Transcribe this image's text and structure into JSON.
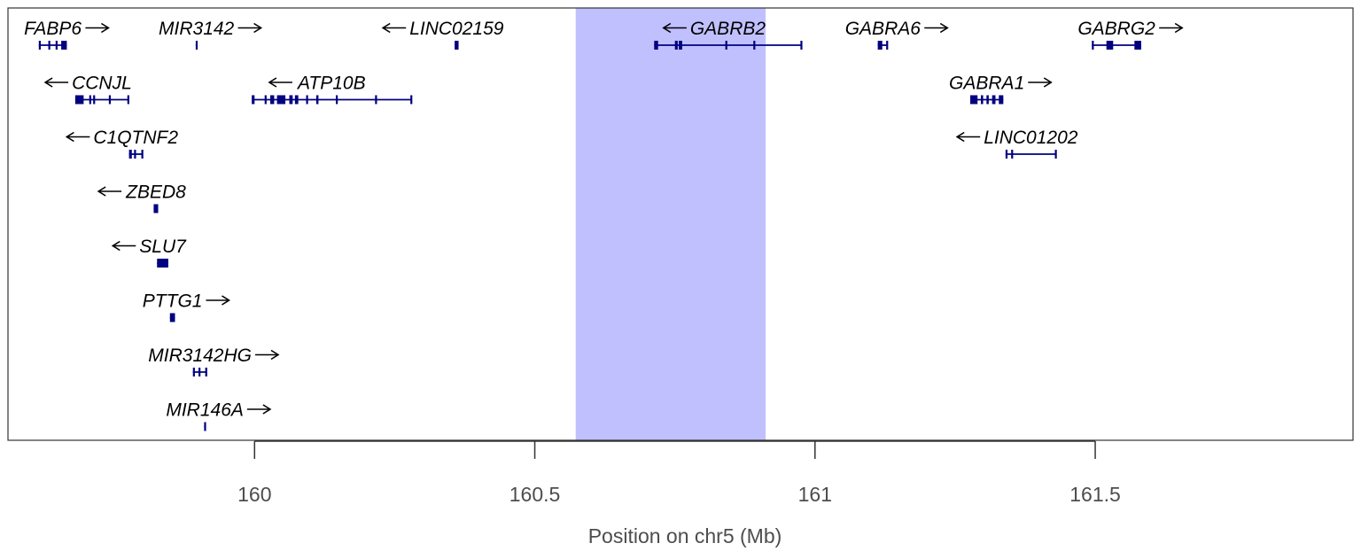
{
  "chart_data": {
    "type": "gene-track",
    "xlabel": "Position on chr5 (Mb)",
    "xlim": [
      159.56,
      161.96
    ],
    "xticks": [
      {
        "value": 160,
        "label": "160"
      },
      {
        "value": 160.5,
        "label": "160.5"
      },
      {
        "value": 161,
        "label": "161"
      },
      {
        "value": 161.5,
        "label": "161.5"
      }
    ],
    "highlight": {
      "start": 160.573,
      "end": 160.912,
      "color": "#c0c0ff"
    },
    "gene_color": "#000080",
    "genes": [
      {
        "name": "FABP6",
        "strand": "+",
        "row": 0,
        "start": 159.615,
        "end": 159.665,
        "exons": [
          [
            159.615,
            159.618
          ],
          [
            159.632,
            159.635
          ],
          [
            159.645,
            159.648
          ],
          [
            159.655,
            159.665
          ]
        ]
      },
      {
        "name": "MIR3142",
        "strand": "+",
        "row": 0,
        "start": 159.895,
        "end": 159.897,
        "exons": [
          [
            159.895,
            159.897
          ]
        ]
      },
      {
        "name": "LINC02159",
        "strand": "-",
        "row": 0,
        "start": 160.357,
        "end": 160.364,
        "exons": [
          [
            160.357,
            160.364
          ]
        ]
      },
      {
        "name": "GABRB2",
        "strand": "-",
        "row": 0,
        "start": 160.713,
        "end": 160.976,
        "exons": [
          [
            160.713,
            160.72
          ],
          [
            160.75,
            160.755
          ],
          [
            160.757,
            160.763
          ],
          [
            160.84,
            160.842
          ],
          [
            160.89,
            160.892
          ],
          [
            160.974,
            160.976
          ]
        ]
      },
      {
        "name": "GABRA6",
        "strand": "+",
        "row": 0,
        "start": 161.112,
        "end": 161.13,
        "exons": [
          [
            161.112,
            161.12
          ],
          [
            161.127,
            161.13
          ]
        ]
      },
      {
        "name": "GABRG2",
        "strand": "+",
        "row": 0,
        "start": 161.494,
        "end": 161.582,
        "exons": [
          [
            161.494,
            161.496
          ],
          [
            161.52,
            161.532
          ],
          [
            161.57,
            161.582
          ]
        ]
      },
      {
        "name": "CCNJL",
        "strand": "-",
        "row": 1,
        "start": 159.68,
        "end": 159.775,
        "exons": [
          [
            159.68,
            159.695
          ],
          [
            159.705,
            159.708
          ],
          [
            159.712,
            159.715
          ],
          [
            159.74,
            159.743
          ],
          [
            159.773,
            159.775
          ]
        ]
      },
      {
        "name": "ATP10B",
        "strand": "-",
        "row": 1,
        "start": 159.995,
        "end": 160.28,
        "exons": [
          [
            159.995,
            160.0
          ],
          [
            160.018,
            160.021
          ],
          [
            160.028,
            160.035
          ],
          [
            160.04,
            160.055
          ],
          [
            160.062,
            160.068
          ],
          [
            160.072,
            160.078
          ],
          [
            160.092,
            160.094
          ],
          [
            160.11,
            160.114
          ],
          [
            160.145,
            160.147
          ],
          [
            160.215,
            160.217
          ],
          [
            160.278,
            160.28
          ]
        ]
      },
      {
        "name": "GABRA1",
        "strand": "+",
        "row": 1,
        "start": 161.277,
        "end": 161.336,
        "exons": [
          [
            161.277,
            161.29
          ],
          [
            161.296,
            161.3
          ],
          [
            161.306,
            161.31
          ],
          [
            161.316,
            161.322
          ],
          [
            161.328,
            161.336
          ]
        ]
      },
      {
        "name": "C1QTNF2",
        "strand": "-",
        "row": 2,
        "start": 159.776,
        "end": 159.8,
        "exons": [
          [
            159.776,
            159.781
          ],
          [
            159.785,
            159.787
          ],
          [
            159.798,
            159.8
          ]
        ]
      },
      {
        "name": "LINC01202",
        "strand": "-",
        "row": 2,
        "start": 161.34,
        "end": 161.43,
        "exons": [
          [
            161.34,
            161.342
          ],
          [
            161.35,
            161.352
          ],
          [
            161.428,
            161.43
          ]
        ]
      },
      {
        "name": "ZBED8",
        "strand": "-",
        "row": 3,
        "start": 159.82,
        "end": 159.828,
        "exons": [
          [
            159.82,
            159.828
          ]
        ]
      },
      {
        "name": "SLU7",
        "strand": "-",
        "row": 4,
        "start": 159.826,
        "end": 159.846,
        "exons": [
          [
            159.826,
            159.846
          ]
        ]
      },
      {
        "name": "PTTG1",
        "strand": "+",
        "row": 5,
        "start": 159.849,
        "end": 159.858,
        "exons": [
          [
            159.849,
            159.858
          ]
        ]
      },
      {
        "name": "MIR3142HG",
        "strand": "+",
        "row": 6,
        "start": 159.89,
        "end": 159.915,
        "exons": [
          [
            159.89,
            159.893
          ],
          [
            159.9,
            159.903
          ],
          [
            159.912,
            159.915
          ]
        ]
      },
      {
        "name": "MIR146A",
        "strand": "+",
        "row": 7,
        "start": 159.91,
        "end": 159.912,
        "exons": [
          [
            159.91,
            159.912
          ]
        ]
      }
    ]
  }
}
